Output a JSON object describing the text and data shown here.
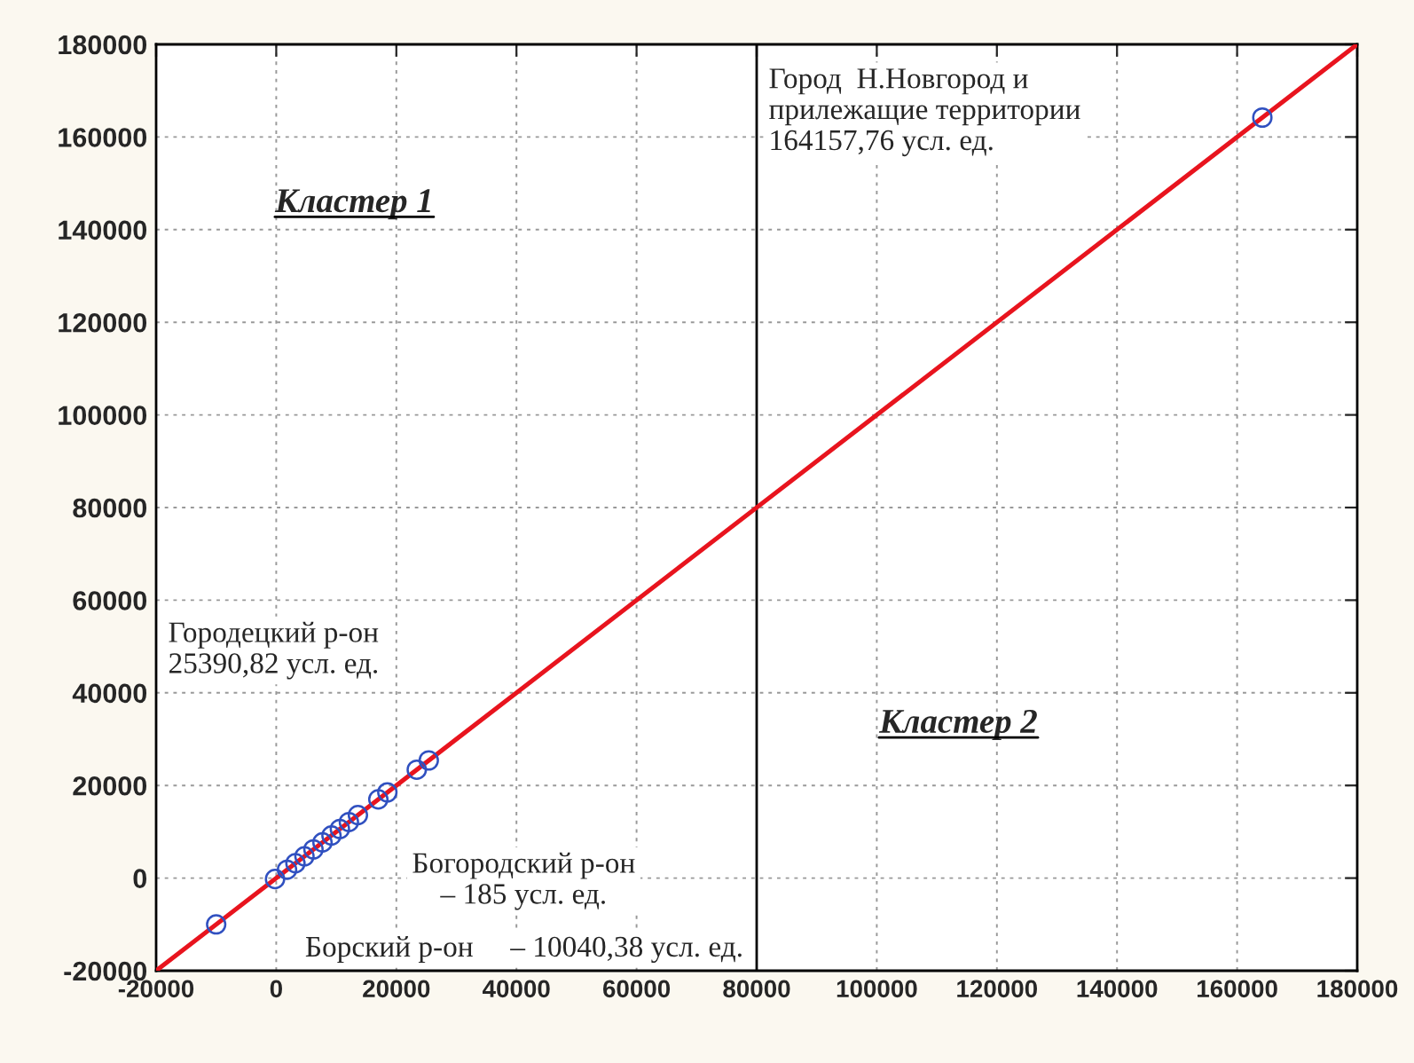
{
  "chart_data": {
    "type": "scatter",
    "x": [
      -10000,
      -200,
      1800,
      3200,
      4700,
      6200,
      7700,
      9200,
      10600,
      12100,
      13600,
      17000,
      18500,
      23400,
      25400,
      164200
    ],
    "series": [
      {
        "color": "#3050c0",
        "marker": "circle",
        "values": [
          -10000,
          -200,
          1800,
          3200,
          4700,
          6200,
          7700,
          9200,
          10600,
          12100,
          13600,
          17000,
          18500,
          23400,
          25400,
          164200
        ]
      },
      {
        "type": "line",
        "color": "#e8141e",
        "x": [
          -20000,
          180000
        ],
        "values": [
          -20000,
          180000
        ],
        "line_style": "solid"
      }
    ],
    "xlim": [
      -20000,
      180000
    ],
    "ylim": [
      -20000,
      180000
    ],
    "xticks": [
      -20000,
      0,
      20000,
      40000,
      60000,
      80000,
      100000,
      120000,
      140000,
      160000,
      180000
    ],
    "yticks": [
      -20000,
      0,
      20000,
      40000,
      60000,
      80000,
      100000,
      120000,
      140000,
      160000,
      180000
    ],
    "grid": true,
    "ref_lines": [
      {
        "axis": "x",
        "value": 80000,
        "color": "#000000",
        "line_style": "solid"
      }
    ],
    "annotations": [
      "Город  Н.Новгород и\nприлежащие территории\n164157,76 усл. ед.",
      "Кластер 1",
      "Городецкий р-он\n25390,82 усл. ед.",
      "Кластер 2",
      "Богородский р-он\n– 185 усл. ед.",
      "Борский р-он     – 10040,38 усл. ед."
    ]
  }
}
